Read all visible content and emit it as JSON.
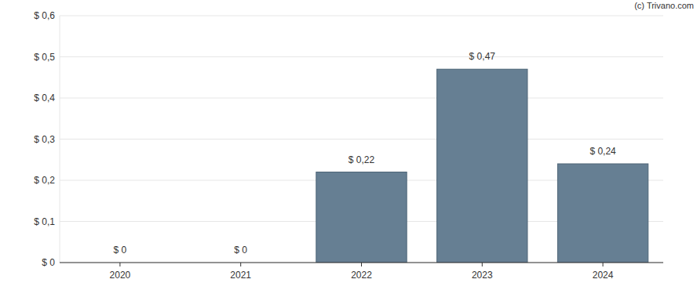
{
  "chart_data": {
    "type": "bar",
    "annotations": [
      "(c) Trivano.com"
    ],
    "categories": [
      "2020",
      "2021",
      "2022",
      "2023",
      "2024"
    ],
    "values": [
      0,
      0,
      0.22,
      0.47,
      0.24
    ],
    "value_labels": [
      "$ 0",
      "$ 0",
      "$ 0,22",
      "$ 0,47",
      "$ 0,24"
    ],
    "color": "#667f93",
    "ylim": [
      0,
      0.6
    ],
    "yticks": [
      {
        "value": 0,
        "label": "$ 0"
      },
      {
        "value": 0.1,
        "label": "$ 0,1"
      },
      {
        "value": 0.2,
        "label": "$ 0,2"
      },
      {
        "value": 0.3,
        "label": "$ 0,3"
      },
      {
        "value": 0.4,
        "label": "$ 0,4"
      },
      {
        "value": 0.5,
        "label": "$ 0,5"
      },
      {
        "value": 0.6,
        "label": "$ 0,6"
      }
    ],
    "grid": true,
    "data_labels": true
  }
}
